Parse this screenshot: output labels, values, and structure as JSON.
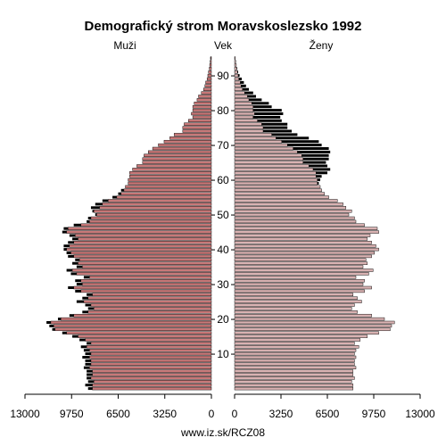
{
  "chart_data": {
    "type": "bar",
    "orientation": "horizontal-population-pyramid",
    "title": "Demografický strom Moravskoslezsko 1992",
    "left_label": "Muži",
    "center_label": "Vek",
    "right_label": "Ženy",
    "footer": "www.iz.sk/RCZ08",
    "x_max": 13000,
    "x_ticks_left": [
      "13000",
      "9750",
      "6500",
      "3250",
      "0"
    ],
    "x_ticks_right": [
      "0",
      "3250",
      "6500",
      "9750",
      "13000"
    ],
    "x_tick_values": [
      0,
      3250,
      6500,
      9750,
      13000
    ],
    "y_ticks": [
      10,
      20,
      30,
      40,
      50,
      60,
      70,
      80,
      90
    ],
    "age_range": [
      0,
      95
    ],
    "colors": {
      "male_fill": "#c87878",
      "female_fill": "#d9b2b2",
      "excess": "#000000"
    },
    "series": [
      {
        "name": "Muži",
        "values": [
          8600,
          8800,
          8600,
          8700,
          8700,
          8700,
          8900,
          8800,
          8800,
          9000,
          8800,
          8900,
          9100,
          8700,
          9200,
          9700,
          10400,
          11100,
          11300,
          11500,
          10700,
          9900,
          9000,
          8600,
          8800,
          9400,
          9000,
          8700,
          9500,
          10000,
          9400,
          9500,
          8900,
          9800,
          10100,
          9400,
          9700,
          9500,
          10000,
          10100,
          10300,
          10300,
          10000,
          9700,
          9900,
          10400,
          10300,
          9600,
          8700,
          8600,
          8100,
          8300,
          8400,
          8100,
          7600,
          6900,
          6500,
          6300,
          6000,
          5800,
          5800,
          5700,
          5700,
          5500,
          5200,
          4800,
          4800,
          4700,
          4400,
          4100,
          3700,
          3300,
          2900,
          2600,
          2000,
          2000,
          1900,
          1600,
          1300,
          1400,
          1300,
          1300,
          1200,
          1000,
          900,
          700,
          550,
          450,
          400,
          300,
          250,
          200,
          150,
          120,
          100,
          80
        ]
      },
      {
        "name": "Ženy",
        "values": [
          8300,
          8300,
          8200,
          8400,
          8300,
          8300,
          8500,
          8400,
          8400,
          8500,
          8400,
          8500,
          8700,
          8400,
          8800,
          9300,
          10100,
          10900,
          11000,
          11200,
          10500,
          9600,
          8600,
          8200,
          8400,
          8900,
          8600,
          8300,
          9100,
          9600,
          9000,
          9100,
          8500,
          9400,
          9700,
          9000,
          9300,
          9200,
          9600,
          9800,
          10100,
          9900,
          9600,
          9300,
          9500,
          10100,
          10000,
          9100,
          8500,
          8400,
          8000,
          8200,
          7800,
          7600,
          7200,
          6600,
          6300,
          6100,
          6000,
          5900,
          6000,
          6100,
          6500,
          6700,
          6500,
          6400,
          6600,
          6600,
          6700,
          6600,
          6100,
          5900,
          5200,
          4400,
          4000,
          3700,
          3700,
          3300,
          3200,
          3400,
          3300,
          2600,
          2400,
          1900,
          1500,
          1300,
          1000,
          800,
          650,
          500,
          350,
          250,
          180,
          120,
          80,
          50
        ]
      }
    ]
  }
}
